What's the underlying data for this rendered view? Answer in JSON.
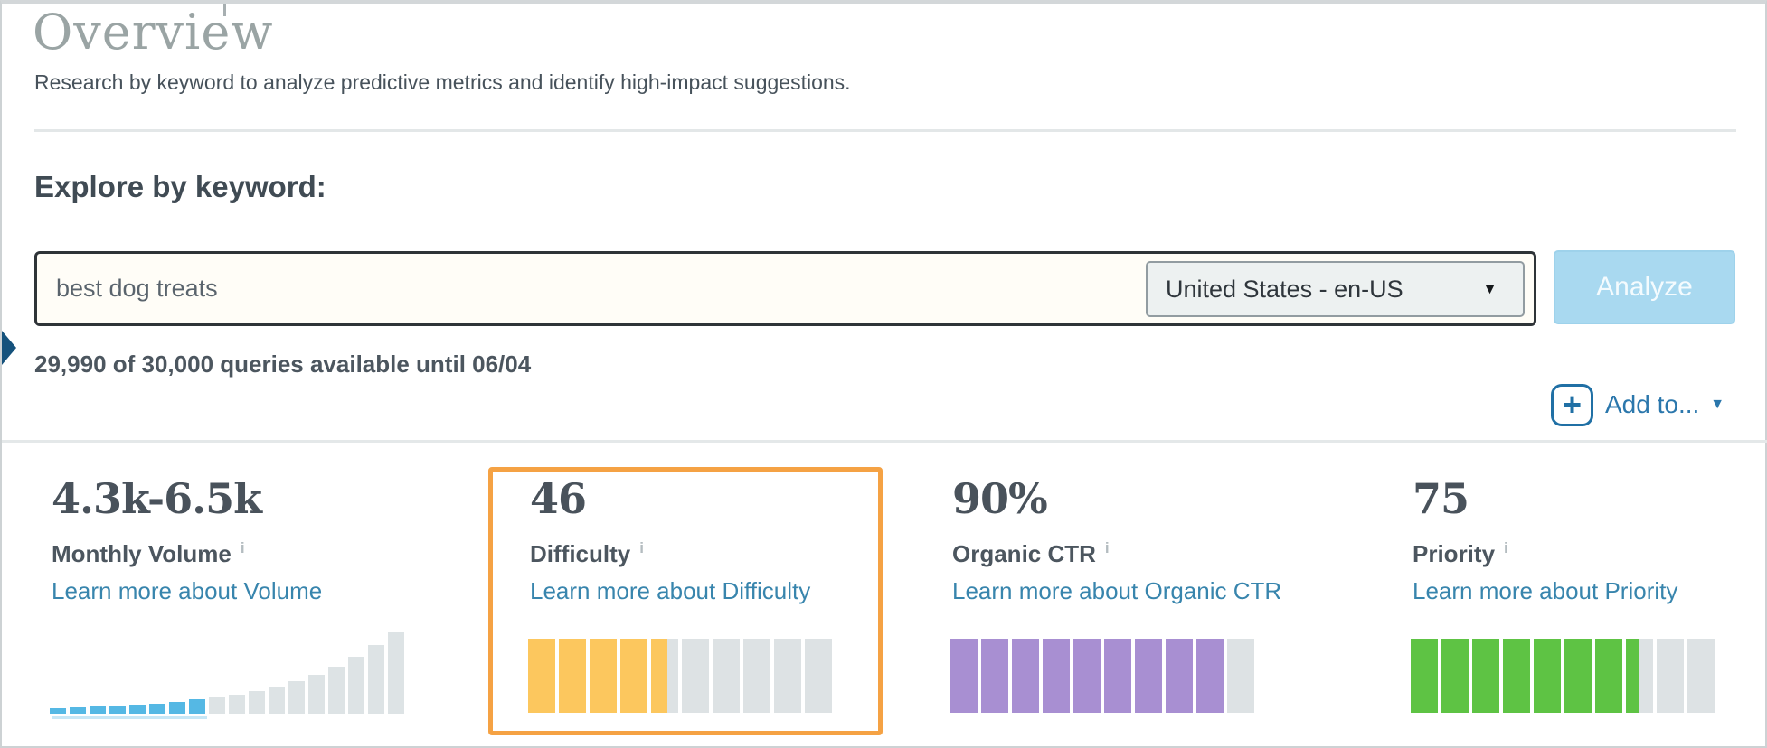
{
  "page": {
    "title": "Overview",
    "subtitle": "Research by keyword to analyze predictive metrics and identify high-impact suggestions."
  },
  "explore": {
    "heading": "Explore by keyword:",
    "keyword_input": {
      "value": "best dog treats"
    },
    "locale_select": {
      "value": "United States - en-US"
    },
    "analyze_button": "Analyze",
    "quota_text": "29,990 of 30,000 queries available until 06/04",
    "add_to_button": "Add to..."
  },
  "icons": {
    "dropdown_caret": "▼",
    "addto_caret": "▼",
    "plus": "+",
    "info_glyph": "i"
  },
  "metrics": {
    "cards": [
      {
        "id": "monthly-volume",
        "value": "4.3k-6.5k",
        "label": "Monthly Volume",
        "link": "Learn more about Volume",
        "highlighted": false
      },
      {
        "id": "difficulty",
        "value": "46",
        "label": "Difficulty",
        "link": "Learn more about Difficulty",
        "highlighted": true
      },
      {
        "id": "organic-ctr",
        "value": "90%",
        "label": "Organic CTR",
        "link": "Learn more about Organic CTR",
        "highlighted": false
      },
      {
        "id": "priority",
        "value": "75",
        "label": "Priority",
        "link": "Learn more about Priority",
        "highlighted": false
      }
    ]
  },
  "chart_data": [
    {
      "type": "bar",
      "name": "monthly-volume-distribution",
      "title": "Monthly Volume 4.3k-6.5k",
      "values": [
        6,
        7,
        8,
        9,
        10,
        11,
        13,
        16,
        18,
        21,
        25,
        30,
        36,
        43,
        52,
        63,
        76,
        90
      ],
      "highlight_count": 8,
      "highlight_color": "#55b8e4",
      "base_color": "#dde3e5",
      "range_underline_color": "#c7e7f6"
    },
    {
      "type": "segment-gauge",
      "name": "difficulty-gauge",
      "title": "Difficulty 46",
      "segments": 10,
      "filled": 4.6,
      "fill_color": "#fcc75e",
      "empty_color": "#dde2e4"
    },
    {
      "type": "segment-gauge",
      "name": "organic-ctr-gauge",
      "title": "Organic CTR 90%",
      "segments": 10,
      "filled": 9,
      "fill_color": "#a88fd2",
      "empty_color": "#dde2e4"
    },
    {
      "type": "segment-gauge",
      "name": "priority-gauge",
      "title": "Priority 75",
      "segments": 10,
      "filled": 7.5,
      "fill_color": "#5ec344",
      "empty_color": "#dde2e4"
    }
  ],
  "colors": {
    "highlight_border": "#f5a244",
    "link_blue": "#3885ad",
    "action_blue": "#2070a5",
    "analyze_bg": "#a9d9f0",
    "difficulty_yellow": "#fcc75e",
    "ctr_purple": "#a88fd2",
    "priority_green": "#5ec344",
    "volume_blue": "#55b8e4",
    "bar_gray": "#dde3e5"
  }
}
